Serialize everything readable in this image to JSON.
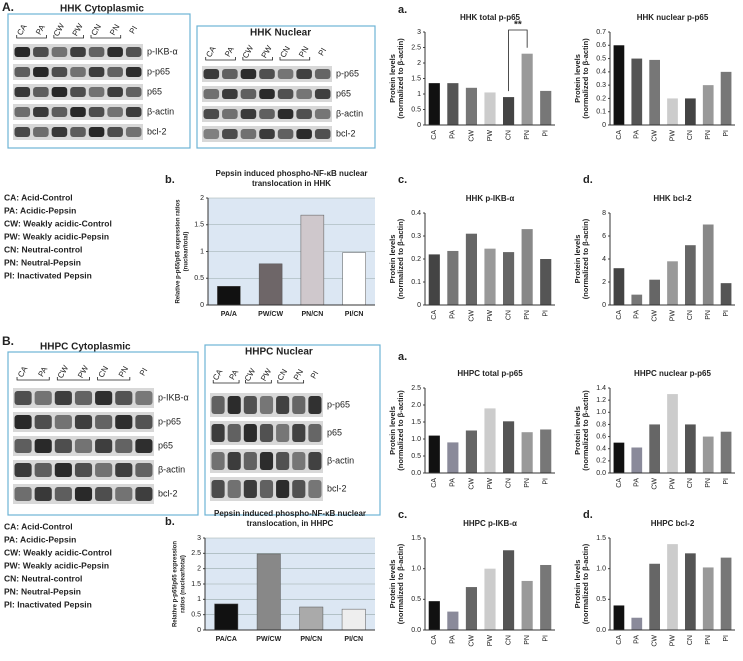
{
  "figure_labels": [
    "A.",
    "B."
  ],
  "blots": [
    {
      "title": "HHK  Cytoplasmic",
      "lanes": [
        "CA",
        "PA",
        "CW",
        "PW",
        "CN",
        "PN",
        "PI"
      ],
      "proteins": [
        "p-IKB-α",
        "p-p65",
        "p65",
        "β-actin",
        "bcl-2"
      ]
    },
    {
      "title": "HHK  Nuclear",
      "lanes": [
        "CA",
        "PA",
        "CW",
        "PW",
        "CN",
        "PN",
        "PI"
      ],
      "proteins": [
        "p-p65",
        "p65",
        "β-actin",
        "bcl-2"
      ]
    },
    {
      "title": "HHPC Cytoplasmic",
      "lanes": [
        "CA",
        "PA",
        "CW",
        "PW",
        "CN",
        "PN",
        "PI"
      ],
      "proteins": [
        "p-IKB-α",
        "p-p65",
        "p65",
        "β-actin",
        "bcl-2"
      ]
    },
    {
      "title": "HHPC Nuclear",
      "lanes": [
        "CA",
        "PA",
        "CW",
        "PW",
        "CN",
        "PN",
        "PI"
      ],
      "proteins": [
        "p-p65",
        "p65",
        "β-actin",
        "bcl-2"
      ]
    }
  ],
  "legends": [
    [
      "CA: Acid-Control",
      "PA: Acidic-Pepsin",
      "CW: Weakly acidic-Control",
      "PW: Weakly acidic-Pepsin",
      "CN: Neutral-control",
      "PN: Neutral-Pepsin",
      "PI: Inactivated Pepsin"
    ],
    [
      "CA: Acid-Control",
      "PA: Acidic-Pepsin",
      "CW: Weakly acidic-Control",
      "PW: Weakly acidic-Pepsin",
      "CN: Neutral-control",
      "PN: Neutral-Pepsin",
      "PI: Inactivated Pepsin"
    ]
  ],
  "chart_data": [
    {
      "type": "bar",
      "label": "a.",
      "title": [
        "HHK total p-p65"
      ],
      "ylabel": [
        "Protein levels",
        "(normalized to β-actin)"
      ],
      "categories": [
        "CA",
        "PA",
        "CW",
        "PW",
        "CN",
        "PN",
        "PI"
      ],
      "values": [
        1.35,
        1.35,
        1.2,
        1.05,
        0.9,
        2.3,
        1.1
      ],
      "colors": [
        "#111111",
        "#555555",
        "#777777",
        "#cccccc",
        "#444444",
        "#999999",
        "#777777"
      ],
      "ylim": [
        0,
        3
      ],
      "yticks": [
        0,
        0.5,
        1,
        1.5,
        2,
        2.5,
        3
      ],
      "annotation": "**"
    },
    {
      "type": "bar",
      "title": [
        "HHK nuclear p-p65"
      ],
      "ylabel": [
        "Protein levels",
        "(normalized to β-actin)"
      ],
      "categories": [
        "CA",
        "PA",
        "CW",
        "PW",
        "CN",
        "PN",
        "PI"
      ],
      "values": [
        0.6,
        0.5,
        0.49,
        0.2,
        0.2,
        0.3,
        0.4
      ],
      "colors": [
        "#111111",
        "#555555",
        "#777777",
        "#cccccc",
        "#444444",
        "#999999",
        "#777777"
      ],
      "ylim": [
        0,
        0.7
      ],
      "yticks": [
        0,
        0.1,
        0.2,
        0.3,
        0.4,
        0.5,
        0.6,
        0.7
      ]
    },
    {
      "type": "bar",
      "label": "b.",
      "title": [
        "Pepsin induced phospho-NF-κB nuclear",
        "translocation in HHK"
      ],
      "ylabel": [
        "Relative p-p65/p65 expression ratios",
        "(nuclear/total)"
      ],
      "categories": [
        "PA/A",
        "PW/CW",
        "PN/CN",
        "PI/CN"
      ],
      "values": [
        0.35,
        0.77,
        1.68,
        0.98
      ],
      "colors": [
        "#111111",
        "#6e6668",
        "#cfc8cc",
        "#ffffff"
      ],
      "background": "#dce7f3",
      "grid": true,
      "ylim": [
        0,
        2
      ],
      "yticks": [
        0,
        0.5,
        1,
        1.5,
        2
      ]
    },
    {
      "type": "bar",
      "label": "c.",
      "title": [
        "HHK p-IKB-α"
      ],
      "ylabel": [
        "Protein levels",
        "(normalized to β-actin)"
      ],
      "categories": [
        "CA",
        "PA",
        "CW",
        "PW",
        "CN",
        "PN",
        "PI"
      ],
      "values": [
        0.22,
        0.235,
        0.31,
        0.245,
        0.23,
        0.33,
        0.2
      ],
      "colors": [
        "#444444",
        "#777777",
        "#666666",
        "#999999",
        "#666666",
        "#888888",
        "#555555"
      ],
      "ylim": [
        0,
        0.4
      ],
      "yticks": [
        0,
        0.1,
        0.2,
        0.3,
        0.4
      ]
    },
    {
      "type": "bar",
      "label": "d.",
      "title": [
        "HHK bcl-2"
      ],
      "ylabel": [
        "Protein levels",
        "(normalized to β-actin)"
      ],
      "categories": [
        "CA",
        "PA",
        "CW",
        "PW",
        "CN",
        "PN",
        "PI"
      ],
      "values": [
        3.2,
        0.9,
        2.2,
        3.8,
        5.2,
        7.0,
        1.9
      ],
      "colors": [
        "#444444",
        "#777777",
        "#666666",
        "#999999",
        "#666666",
        "#888888",
        "#555555"
      ],
      "ylim": [
        0,
        8
      ],
      "yticks": [
        0,
        2,
        4,
        6,
        8
      ]
    },
    {
      "type": "bar",
      "label": "a.",
      "title": [
        "HHPC  total p-p65"
      ],
      "ylabel": [
        "Protein levels",
        "(normalized to β-actin)"
      ],
      "categories": [
        "CA",
        "PA",
        "CW",
        "PW",
        "CN",
        "PN",
        "PI"
      ],
      "values": [
        1.1,
        0.9,
        1.25,
        1.9,
        1.52,
        1.2,
        1.28
      ],
      "colors": [
        "#111111",
        "#8a8a9a",
        "#666666",
        "#cccccc",
        "#555555",
        "#999999",
        "#777777"
      ],
      "ylim": [
        0,
        2.5
      ],
      "yticks": [
        {
          "value": 0,
          "label": "0.0"
        },
        {
          "value": 0.5,
          "label": "0.5"
        },
        {
          "value": 1,
          "label": "1.0"
        },
        {
          "value": 1.5,
          "label": "1.5"
        },
        {
          "value": 2,
          "label": "2.0"
        },
        {
          "value": 2.5,
          "label": "2.5"
        }
      ]
    },
    {
      "type": "bar",
      "title": [
        "HHPC nuclear p-p65"
      ],
      "ylabel": [
        "Protein levels",
        "(normalized to β-actin)"
      ],
      "categories": [
        "CA",
        "PA",
        "CW",
        "PW",
        "CN",
        "PN",
        "PI"
      ],
      "values": [
        0.5,
        0.42,
        0.8,
        1.3,
        0.8,
        0.6,
        0.68
      ],
      "colors": [
        "#111111",
        "#8a8a9a",
        "#666666",
        "#cccccc",
        "#555555",
        "#999999",
        "#777777"
      ],
      "ylim": [
        0,
        1.4
      ],
      "yticks": [
        {
          "value": 0,
          "label": "0.0"
        },
        {
          "value": 0.2,
          "label": "0.2"
        },
        {
          "value": 0.4,
          "label": "0.4"
        },
        {
          "value": 0.6,
          "label": "0.6"
        },
        {
          "value": 0.8,
          "label": "0.8"
        },
        {
          "value": 1,
          "label": "1.0"
        },
        {
          "value": 1.2,
          "label": "1.2"
        },
        {
          "value": 1.4,
          "label": "1.4"
        }
      ]
    },
    {
      "type": "bar",
      "label": "b.",
      "title": [
        "Pepsin induced phospho-NF-κB nuclear",
        "translocation, in HHPC"
      ],
      "ylabel": [
        "Relative p-p65/p65 expression",
        "ratios (nuclear/total)"
      ],
      "categories": [
        "PA/CA",
        "PW/CW",
        "PN/CN",
        "PI/CN"
      ],
      "values": [
        0.85,
        2.48,
        0.75,
        0.68
      ],
      "colors": [
        "#111111",
        "#888888",
        "#aaaaaa",
        "#eeeeee"
      ],
      "background": "#dce7f3",
      "grid": true,
      "ylim": [
        0,
        3
      ],
      "yticks": [
        0,
        0.5,
        1,
        1.5,
        2,
        2.5,
        3
      ]
    },
    {
      "type": "bar",
      "label": "c.",
      "title": [
        "HHPC p-IKB-α"
      ],
      "ylabel": [
        "Protein levels",
        "(normalized to β-actin)"
      ],
      "categories": [
        "CA",
        "PA",
        "CW",
        "PW",
        "CN",
        "PN",
        "PI"
      ],
      "values": [
        0.47,
        0.3,
        0.7,
        1.0,
        1.3,
        0.8,
        1.06
      ],
      "colors": [
        "#111111",
        "#8a8a9a",
        "#666666",
        "#cccccc",
        "#555555",
        "#999999",
        "#777777"
      ],
      "ylim": [
        0,
        1.5
      ],
      "yticks": [
        {
          "value": 0,
          "label": "0.0"
        },
        {
          "value": 0.5,
          "label": "0.5"
        },
        {
          "value": 1,
          "label": "1.0"
        },
        {
          "value": 1.5,
          "label": "1.5"
        }
      ]
    },
    {
      "type": "bar",
      "label": "d.",
      "title": [
        "HHPC bcl-2"
      ],
      "ylabel": [
        "Protein levels",
        "(normalized to β-actin)"
      ],
      "categories": [
        "CA",
        "PA",
        "CW",
        "PW",
        "CN",
        "PN",
        "PI"
      ],
      "values": [
        0.4,
        0.2,
        1.08,
        1.4,
        1.25,
        1.02,
        1.18
      ],
      "colors": [
        "#111111",
        "#8a8a9a",
        "#666666",
        "#cccccc",
        "#555555",
        "#999999",
        "#777777"
      ],
      "ylim": [
        0,
        1.5
      ],
      "yticks": [
        {
          "value": 0,
          "label": "0.0"
        },
        {
          "value": 0.5,
          "label": "0.5"
        },
        {
          "value": 1,
          "label": "1.0"
        },
        {
          "value": 1.5,
          "label": "1.5"
        }
      ]
    }
  ]
}
